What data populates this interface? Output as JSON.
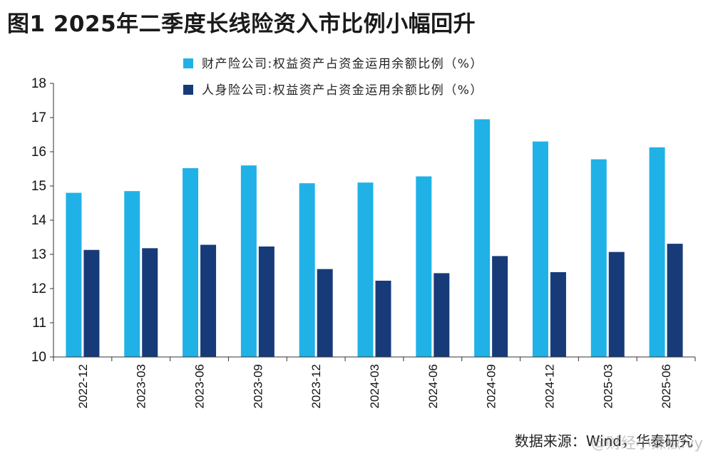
{
  "title": "图1  2025年二季度长线险资入市比例小幅回升",
  "source": "数据来源：Wind，华泰研究",
  "watermark": "@财经小辣椒Ivy",
  "colors": {
    "series1": "#20B2E6",
    "series2": "#173B78"
  },
  "chart_data": {
    "type": "bar",
    "categories": [
      "2022-12",
      "2023-03",
      "2023-06",
      "2023-09",
      "2023-12",
      "2024-03",
      "2024-06",
      "2024-09",
      "2024-12",
      "2025-03",
      "2025-06"
    ],
    "series": [
      {
        "name": "财产险公司:权益资产占资金运用余额比例（%）",
        "values": [
          14.8,
          14.85,
          15.52,
          15.6,
          15.08,
          15.1,
          15.28,
          16.95,
          16.3,
          15.78,
          16.13
        ]
      },
      {
        "name": "人身险公司:权益资产占资金运用余额比例（%）",
        "values": [
          13.13,
          13.18,
          13.28,
          13.23,
          12.57,
          12.23,
          12.45,
          12.95,
          12.48,
          13.07,
          13.31
        ]
      }
    ],
    "ylim": [
      10,
      18
    ],
    "yticks": [
      10,
      11,
      12,
      13,
      14,
      15,
      16,
      17,
      18
    ],
    "legend": "top-center"
  }
}
